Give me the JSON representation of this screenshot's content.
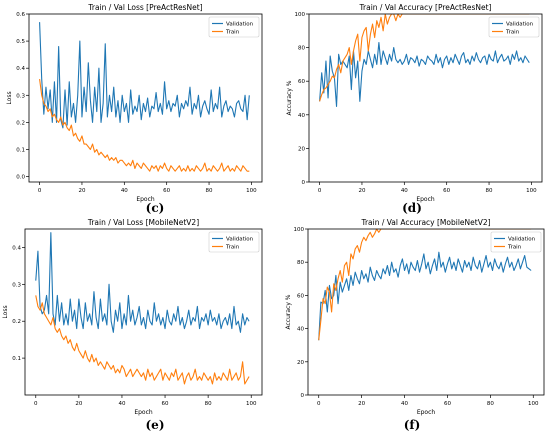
{
  "colors": {
    "validation": "#1f77b4",
    "train": "#ff7f0e"
  },
  "chart_data": [
    {
      "type": "line",
      "title": "Train / Val Loss [PreActResNet]",
      "xlabel": "Epoch",
      "ylabel": "Loss",
      "xlim": [
        -5,
        105
      ],
      "ylim": [
        -0.02,
        0.6
      ],
      "xticks": [
        0,
        20,
        40,
        60,
        80,
        100
      ],
      "yticks": [
        0.0,
        0.1,
        0.2,
        0.3,
        0.4,
        0.5,
        0.6
      ],
      "ytick_labels": [
        "0.0",
        "0.1",
        "0.2",
        "0.3",
        "0.4",
        "0.5",
        "0.6"
      ],
      "legend": "top-right",
      "caption": "(c)",
      "series": [
        {
          "name": "Validation",
          "color_key": "validation",
          "values": [
            0.57,
            0.36,
            0.23,
            0.33,
            0.25,
            0.32,
            0.2,
            0.35,
            0.2,
            0.48,
            0.21,
            0.18,
            0.32,
            0.19,
            0.35,
            0.22,
            0.27,
            0.2,
            0.3,
            0.5,
            0.22,
            0.33,
            0.24,
            0.42,
            0.28,
            0.2,
            0.33,
            0.24,
            0.4,
            0.2,
            0.27,
            0.49,
            0.22,
            0.3,
            0.24,
            0.33,
            0.22,
            0.28,
            0.2,
            0.3,
            0.24,
            0.27,
            0.2,
            0.32,
            0.23,
            0.26,
            0.24,
            0.3,
            0.21,
            0.27,
            0.24,
            0.29,
            0.22,
            0.26,
            0.25,
            0.31,
            0.24,
            0.27,
            0.23,
            0.35,
            0.25,
            0.28,
            0.24,
            0.27,
            0.26,
            0.3,
            0.22,
            0.27,
            0.25,
            0.28,
            0.26,
            0.33,
            0.23,
            0.27,
            0.25,
            0.3,
            0.22,
            0.26,
            0.28,
            0.25,
            0.23,
            0.32,
            0.24,
            0.27,
            0.25,
            0.33,
            0.22,
            0.26,
            0.28,
            0.24,
            0.26,
            0.25,
            0.22,
            0.27,
            0.28,
            0.25,
            0.24,
            0.3,
            0.21,
            0.3
          ]
        },
        {
          "name": "Train",
          "color_key": "train",
          "values": [
            0.36,
            0.3,
            0.27,
            0.26,
            0.24,
            0.25,
            0.22,
            0.23,
            0.21,
            0.2,
            0.22,
            0.19,
            0.2,
            0.18,
            0.17,
            0.19,
            0.15,
            0.16,
            0.14,
            0.13,
            0.15,
            0.12,
            0.12,
            0.11,
            0.1,
            0.12,
            0.09,
            0.1,
            0.08,
            0.09,
            0.08,
            0.07,
            0.08,
            0.06,
            0.07,
            0.06,
            0.07,
            0.05,
            0.06,
            0.06,
            0.05,
            0.04,
            0.05,
            0.04,
            0.06,
            0.03,
            0.05,
            0.04,
            0.03,
            0.05,
            0.04,
            0.03,
            0.02,
            0.04,
            0.03,
            0.04,
            0.02,
            0.04,
            0.03,
            0.05,
            0.03,
            0.02,
            0.04,
            0.03,
            0.02,
            0.03,
            0.04,
            0.02,
            0.03,
            0.02,
            0.04,
            0.02,
            0.03,
            0.02,
            0.04,
            0.03,
            0.02,
            0.03,
            0.05,
            0.02,
            0.03,
            0.02,
            0.04,
            0.03,
            0.02,
            0.03,
            0.05,
            0.02,
            0.03,
            0.04,
            0.02,
            0.03,
            0.02,
            0.04,
            0.03,
            0.02,
            0.04,
            0.03,
            0.02,
            0.02
          ]
        }
      ]
    },
    {
      "type": "line",
      "title": "Train / Val Accuracy [PreActResNet]",
      "xlabel": "Epoch",
      "ylabel": "Accuracy %",
      "xlim": [
        -5,
        105
      ],
      "ylim": [
        0,
        100
      ],
      "xticks": [
        0,
        20,
        40,
        60,
        80,
        100
      ],
      "yticks": [
        0,
        20,
        40,
        60,
        80,
        100
      ],
      "ytick_labels": [
        "0",
        "20",
        "40",
        "60",
        "80",
        "100"
      ],
      "legend": "top-right",
      "caption": "(d)",
      "series": [
        {
          "name": "Validation",
          "color_key": "validation",
          "values": [
            48,
            65,
            53,
            72,
            50,
            75,
            66,
            62,
            45,
            76,
            70,
            72,
            70,
            68,
            75,
            55,
            78,
            62,
            72,
            48,
            66,
            73,
            70,
            78,
            73,
            68,
            76,
            70,
            83,
            70,
            78,
            74,
            70,
            76,
            72,
            80,
            73,
            71,
            73,
            70,
            72,
            76,
            70,
            74,
            73,
            71,
            75,
            69,
            73,
            72,
            70,
            75,
            73,
            72,
            70,
            76,
            71,
            74,
            68,
            73,
            75,
            70,
            74,
            71,
            76,
            73,
            70,
            75,
            77,
            71,
            73,
            70,
            75,
            72,
            77,
            73,
            71,
            74,
            75,
            70,
            76,
            73,
            72,
            78,
            71,
            74,
            76,
            72,
            73,
            75,
            70,
            76,
            73,
            78,
            72,
            74,
            71,
            75,
            73,
            71
          ]
        },
        {
          "name": "Train",
          "color_key": "train",
          "values": [
            48,
            52,
            55,
            56,
            58,
            60,
            63,
            62,
            67,
            70,
            65,
            72,
            74,
            76,
            80,
            70,
            78,
            84,
            88,
            72,
            86,
            90,
            92,
            78,
            88,
            94,
            86,
            96,
            92,
            98,
            90,
            100,
            94,
            98,
            100,
            100,
            96,
            100,
            98,
            100,
            100,
            100,
            100,
            100,
            100,
            100,
            100,
            100,
            100,
            100,
            100,
            100,
            100,
            100,
            100,
            100,
            100,
            100,
            100,
            100,
            100,
            100,
            100,
            100,
            100,
            100,
            100,
            100,
            100,
            100,
            100,
            100,
            100,
            100,
            100,
            100,
            100,
            100,
            100,
            100,
            100,
            100,
            100,
            100,
            100,
            100,
            100,
            100,
            100,
            100,
            100,
            100,
            100,
            100,
            100,
            100,
            100,
            100,
            100,
            100
          ]
        }
      ]
    },
    {
      "type": "line",
      "title": "Train / Val Loss [MobileNetV2]",
      "xlabel": "Epoch",
      "ylabel": "Loss",
      "xlim": [
        -5,
        105
      ],
      "ylim": [
        0,
        0.45
      ],
      "xticks": [
        0,
        20,
        40,
        60,
        80,
        100
      ],
      "yticks": [
        0.1,
        0.2,
        0.3,
        0.4
      ],
      "ytick_labels": [
        "0.1",
        "0.2",
        "0.3",
        "0.4"
      ],
      "legend": "top-right",
      "caption": "(e)",
      "series": [
        {
          "name": "Validation",
          "color_key": "validation",
          "values": [
            0.31,
            0.39,
            0.24,
            0.22,
            0.23,
            0.27,
            0.22,
            0.44,
            0.22,
            0.19,
            0.27,
            0.2,
            0.25,
            0.19,
            0.22,
            0.19,
            0.26,
            0.2,
            0.23,
            0.18,
            0.26,
            0.21,
            0.18,
            0.25,
            0.2,
            0.22,
            0.19,
            0.28,
            0.21,
            0.18,
            0.26,
            0.2,
            0.22,
            0.19,
            0.3,
            0.2,
            0.17,
            0.23,
            0.2,
            0.25,
            0.18,
            0.22,
            0.19,
            0.27,
            0.2,
            0.23,
            0.19,
            0.21,
            0.24,
            0.19,
            0.21,
            0.18,
            0.23,
            0.2,
            0.19,
            0.25,
            0.2,
            0.22,
            0.19,
            0.21,
            0.18,
            0.23,
            0.2,
            0.19,
            0.22,
            0.2,
            0.24,
            0.19,
            0.21,
            0.18,
            0.2,
            0.23,
            0.19,
            0.21,
            0.2,
            0.24,
            0.18,
            0.21,
            0.2,
            0.22,
            0.19,
            0.23,
            0.2,
            0.21,
            0.19,
            0.22,
            0.18,
            0.2,
            0.21,
            0.19,
            0.22,
            0.18,
            0.24,
            0.19,
            0.2,
            0.17,
            0.22,
            0.19,
            0.21,
            0.2
          ]
        },
        {
          "name": "Train",
          "color_key": "train",
          "values": [
            0.27,
            0.24,
            0.23,
            0.25,
            0.22,
            0.21,
            0.2,
            0.19,
            0.21,
            0.18,
            0.17,
            0.18,
            0.16,
            0.15,
            0.16,
            0.14,
            0.15,
            0.13,
            0.12,
            0.14,
            0.12,
            0.11,
            0.1,
            0.12,
            0.1,
            0.09,
            0.11,
            0.09,
            0.1,
            0.08,
            0.09,
            0.08,
            0.07,
            0.09,
            0.08,
            0.07,
            0.08,
            0.06,
            0.07,
            0.06,
            0.08,
            0.07,
            0.05,
            0.06,
            0.07,
            0.05,
            0.06,
            0.07,
            0.06,
            0.05,
            0.06,
            0.04,
            0.07,
            0.05,
            0.06,
            0.04,
            0.05,
            0.06,
            0.07,
            0.04,
            0.06,
            0.05,
            0.04,
            0.06,
            0.05,
            0.07,
            0.04,
            0.05,
            0.06,
            0.03,
            0.05,
            0.06,
            0.04,
            0.05,
            0.07,
            0.04,
            0.05,
            0.04,
            0.06,
            0.05,
            0.04,
            0.05,
            0.03,
            0.06,
            0.04,
            0.05,
            0.04,
            0.06,
            0.05,
            0.04,
            0.07,
            0.04,
            0.05,
            0.06,
            0.04,
            0.05,
            0.09,
            0.03,
            0.04,
            0.05
          ]
        }
      ]
    },
    {
      "type": "line",
      "title": "Train / Val Accuracy [MobileNetV2]",
      "xlabel": "Epoch",
      "ylabel": "Accuracy %",
      "xlim": [
        -5,
        105
      ],
      "ylim": [
        0,
        100
      ],
      "xticks": [
        0,
        20,
        40,
        60,
        80,
        100
      ],
      "yticks": [
        0,
        20,
        40,
        60,
        80,
        100
      ],
      "ytick_labels": [
        "0",
        "20",
        "40",
        "60",
        "80",
        "100"
      ],
      "legend": "top-right",
      "caption": "(f)",
      "series": [
        {
          "name": "Validation",
          "color_key": "validation",
          "values": [
            33,
            56,
            55,
            63,
            50,
            66,
            58,
            60,
            72,
            55,
            68,
            62,
            66,
            70,
            63,
            72,
            66,
            74,
            70,
            67,
            75,
            70,
            73,
            68,
            77,
            72,
            69,
            75,
            72,
            70,
            76,
            73,
            78,
            72,
            80,
            74,
            76,
            71,
            78,
            82,
            75,
            79,
            73,
            80,
            77,
            75,
            81,
            74,
            79,
            85,
            76,
            80,
            73,
            78,
            82,
            75,
            86,
            77,
            80,
            74,
            79,
            83,
            76,
            80,
            75,
            82,
            78,
            74,
            81,
            77,
            80,
            75,
            83,
            78,
            76,
            81,
            74,
            79,
            84,
            77,
            80,
            75,
            82,
            78,
            76,
            80,
            74,
            79,
            83,
            77,
            80,
            75,
            78,
            82,
            76,
            80,
            84,
            77,
            76,
            75
          ]
        },
        {
          "name": "Train",
          "color_key": "train",
          "values": [
            33,
            45,
            58,
            55,
            65,
            62,
            50,
            67,
            63,
            70,
            75,
            68,
            78,
            80,
            72,
            85,
            82,
            88,
            90,
            86,
            92,
            95,
            93,
            96,
            98,
            95,
            97,
            100,
            98,
            100,
            100,
            100,
            100,
            100,
            100,
            100,
            100,
            100,
            100,
            100,
            100,
            100,
            100,
            100,
            100,
            100,
            100,
            100,
            100,
            100,
            100,
            100,
            100,
            100,
            100,
            100,
            100,
            100,
            100,
            100,
            100,
            100,
            100,
            100,
            100,
            100,
            100,
            100,
            100,
            100,
            100,
            100,
            100,
            100,
            100,
            100,
            100,
            100,
            100,
            100,
            100,
            100,
            100,
            100,
            100,
            100,
            100,
            100,
            100,
            100,
            100,
            100,
            100,
            100,
            100,
            100,
            100,
            100,
            100,
            100
          ]
        }
      ]
    }
  ]
}
